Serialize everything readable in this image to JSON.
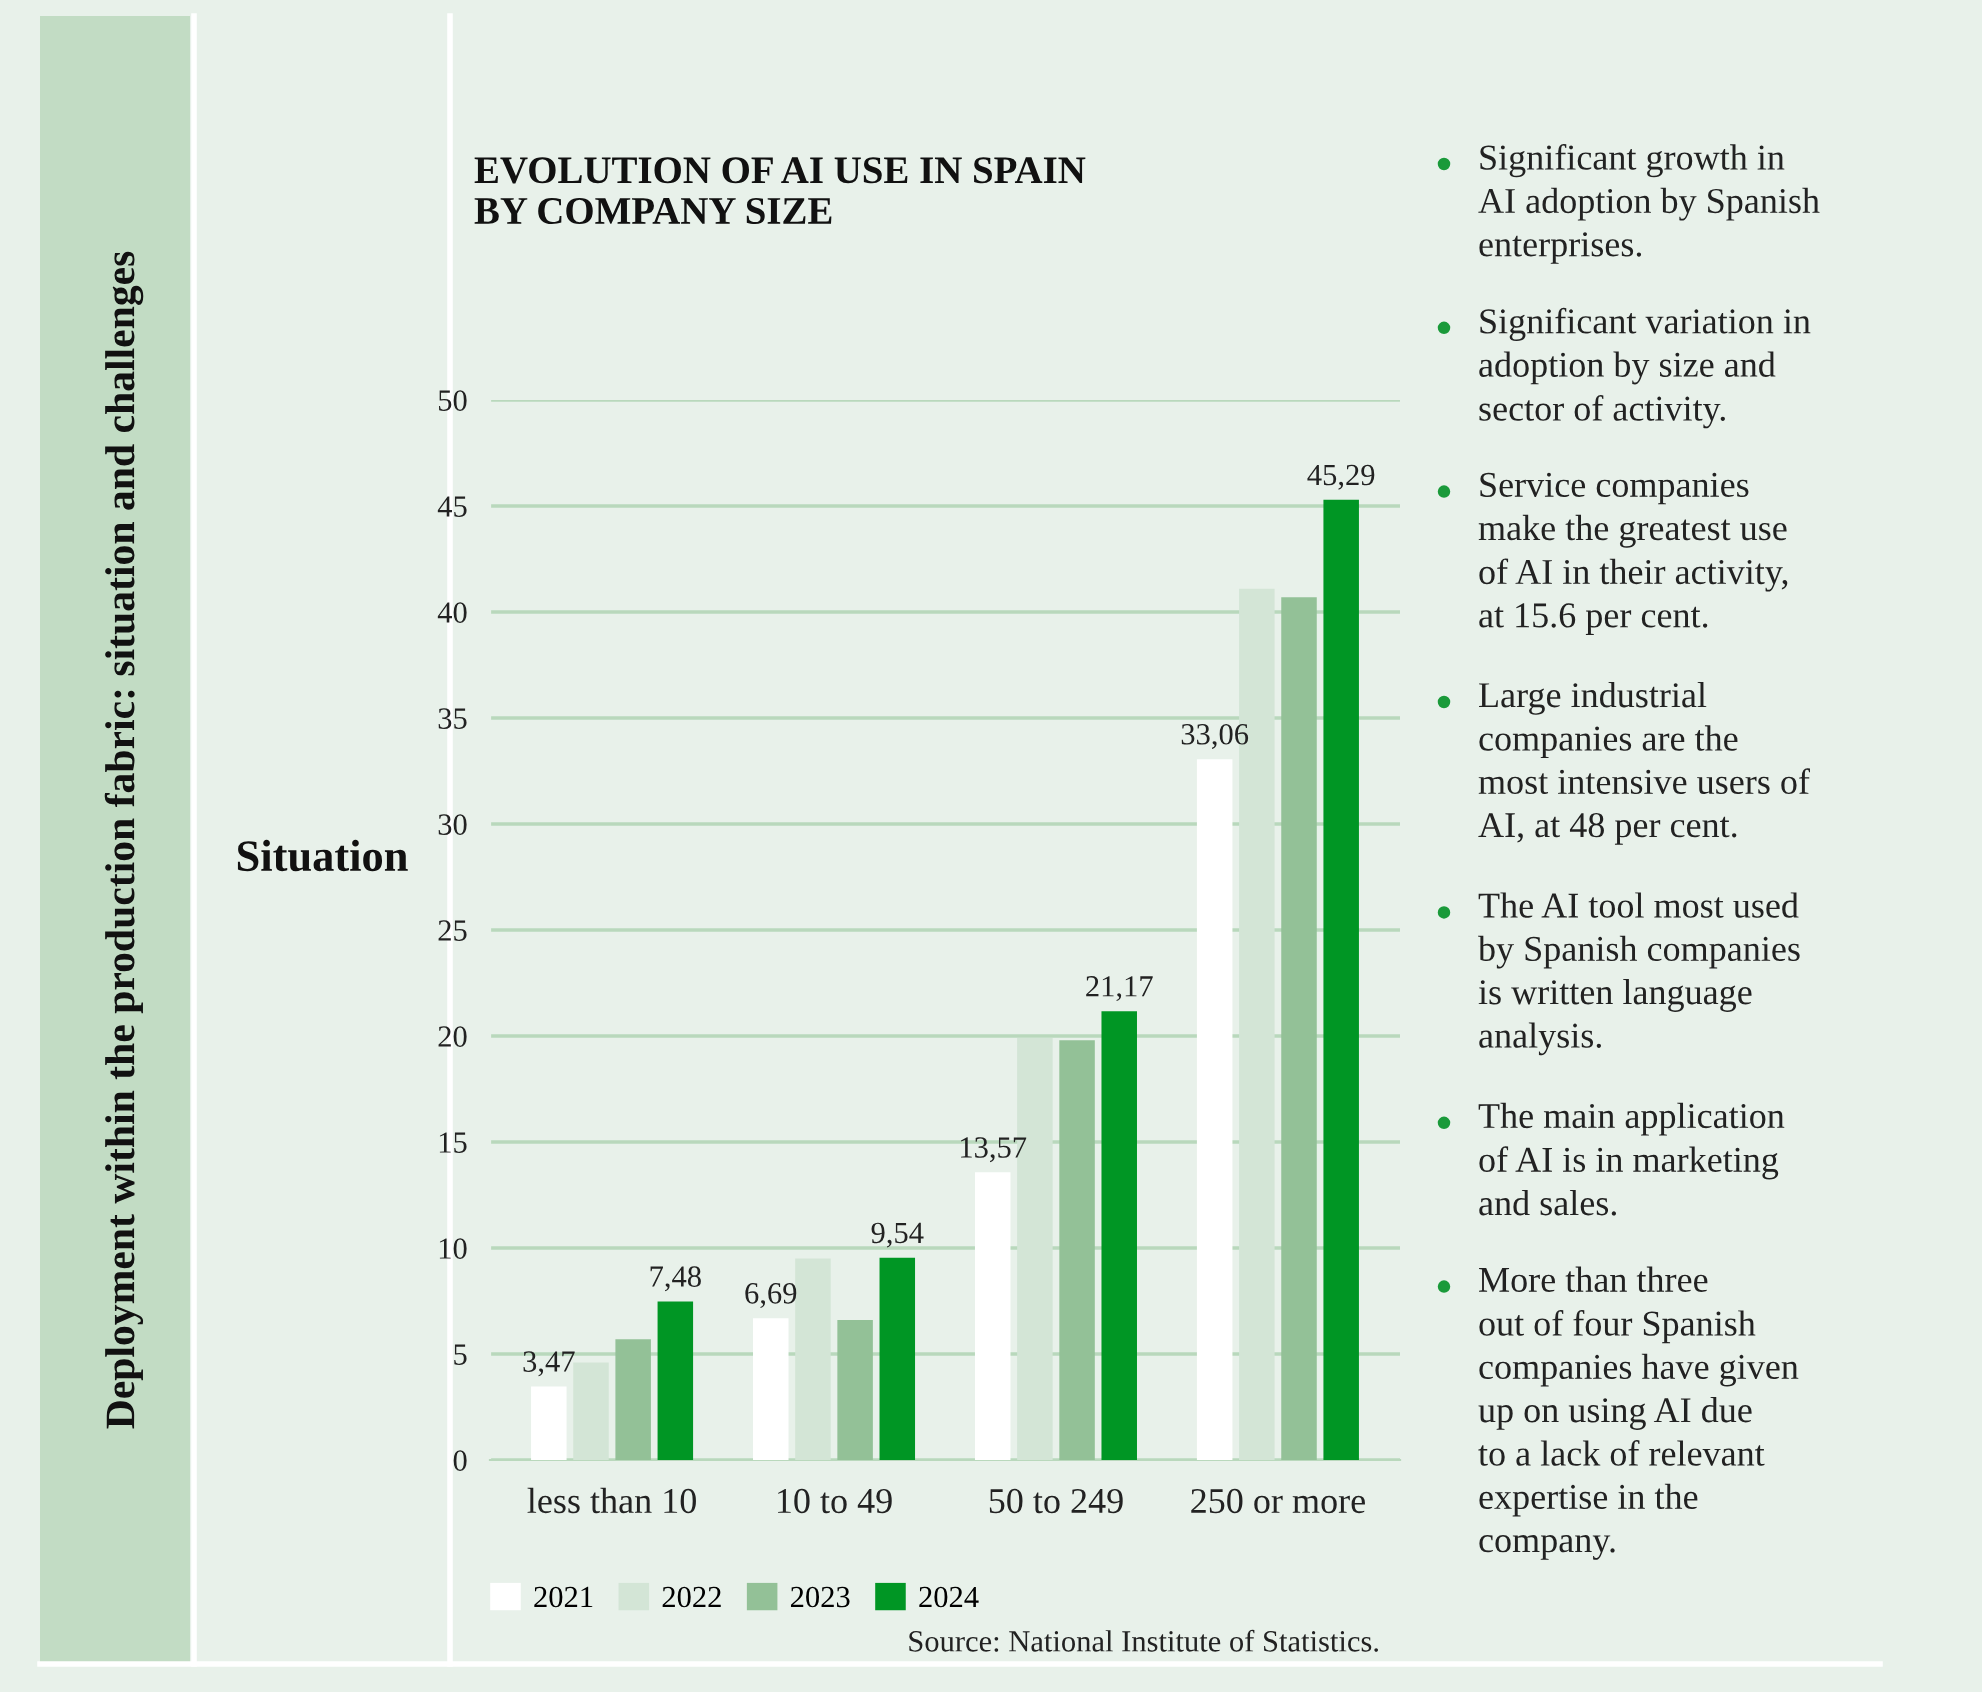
{
  "chart_data": [
    {
      "type": "bar",
      "title": "EVOLUTION OF AI USE IN SPAIN\nBY COMPANY SIZE",
      "categories": [
        "less than 10",
        "10 to 49",
        "50 to 249",
        "250 or more"
      ],
      "series": [
        {
          "name": "2021",
          "color": "#ffffff",
          "values": [
            3.47,
            6.69,
            13.57,
            33.06
          ],
          "value_labels": [
            "3,47",
            "6,69",
            "13,57",
            "33,06"
          ]
        },
        {
          "name": "2022",
          "color": "#d3e5d6",
          "values": [
            4.6,
            9.5,
            19.9,
            41.1
          ]
        },
        {
          "name": "2023",
          "color": "#93c197",
          "values": [
            5.7,
            6.6,
            19.8,
            40.7
          ]
        },
        {
          "name": "2024",
          "color": "#009624",
          "values": [
            7.48,
            9.54,
            21.17,
            45.29
          ],
          "value_labels": [
            "7,48",
            "9,54",
            "21,17",
            "45,29"
          ]
        }
      ],
      "ylim": [
        0,
        50
      ],
      "yticks": [
        0,
        5,
        10,
        15,
        20,
        25,
        30,
        35,
        40,
        45,
        50
      ],
      "grid": "y",
      "legend": "bottom",
      "annotations": [
        "Source: National Institute of Statistics."
      ]
    },
    {
      "type": "other",
      "title": "Deployment within the production fabric: situation and challenges",
      "subtitle": "Situation",
      "annotations": [
        "Significant growth in\nAI adoption by Spanish\nenterprises.",
        "Significant variation in\nadoption by size and\nsector of activity.",
        "Service companies\nmake the greatest use\nof AI in their activity,\nat 15.6 per cent.",
        "Large industrial\ncompanies are the\nmost intensive users of\nAI, at 48 per cent.",
        "The AI tool most used\nby Spanish companies\nis written language\nanalysis.",
        "The main application\nof AI is in marketing\nand sales.",
        "More than three\nout of four Spanish\ncompanies have given\nup on using AI due\nto a lack of relevant\nexpertise in the\ncompany."
      ]
    }
  ]
}
